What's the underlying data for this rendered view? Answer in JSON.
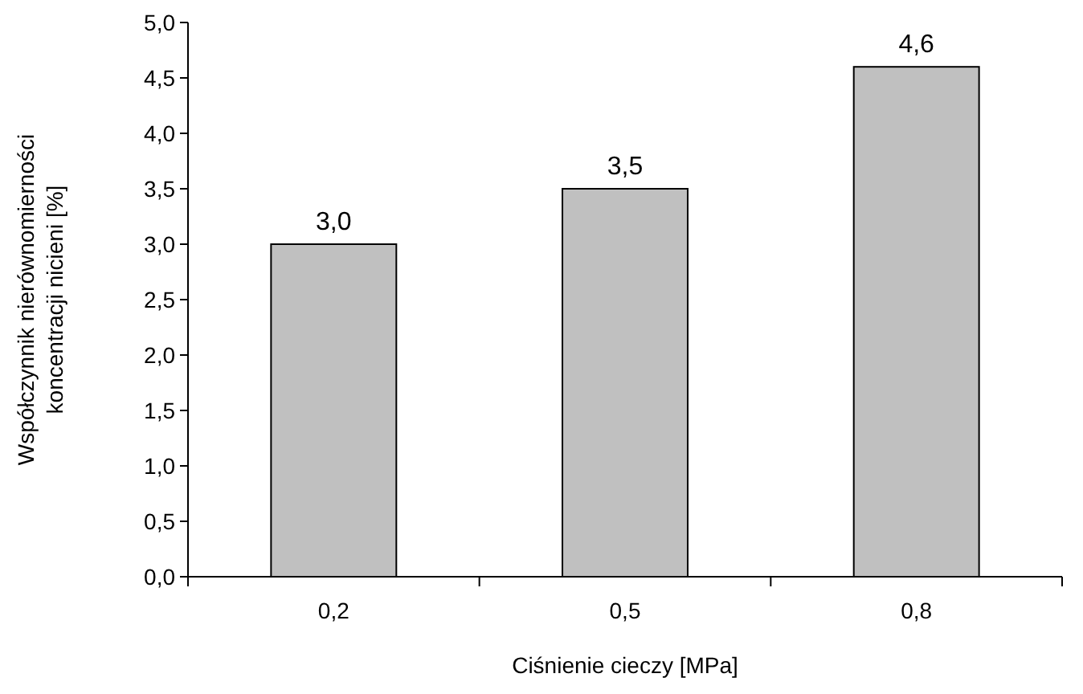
{
  "chart_data": {
    "type": "bar",
    "xlabel": "Ciśnienie cieczy [MPa]",
    "ylabel": "Współczynnik nierównomierności\nkoncentracji nicieni [%]",
    "categories": [
      "0,2",
      "0,5",
      "0,8"
    ],
    "values": [
      3.0,
      3.5,
      4.6
    ],
    "value_labels": [
      "3,0",
      "3,5",
      "4,6"
    ],
    "color": "#c0c0c0",
    "ylim": [
      0,
      5
    ],
    "yticks": [
      {
        "value": 0,
        "label": "0,0"
      },
      {
        "value": 0.5,
        "label": "0,5"
      },
      {
        "value": 1,
        "label": "1,0"
      },
      {
        "value": 1.5,
        "label": "1,5"
      },
      {
        "value": 2,
        "label": "2,0"
      },
      {
        "value": 2.5,
        "label": "2,5"
      },
      {
        "value": 3,
        "label": "3,0"
      },
      {
        "value": 3.5,
        "label": "3,5"
      },
      {
        "value": 4,
        "label": "4,0"
      },
      {
        "value": 4.5,
        "label": "4,5"
      },
      {
        "value": 5,
        "label": "5,0"
      }
    ],
    "grid": false
  }
}
